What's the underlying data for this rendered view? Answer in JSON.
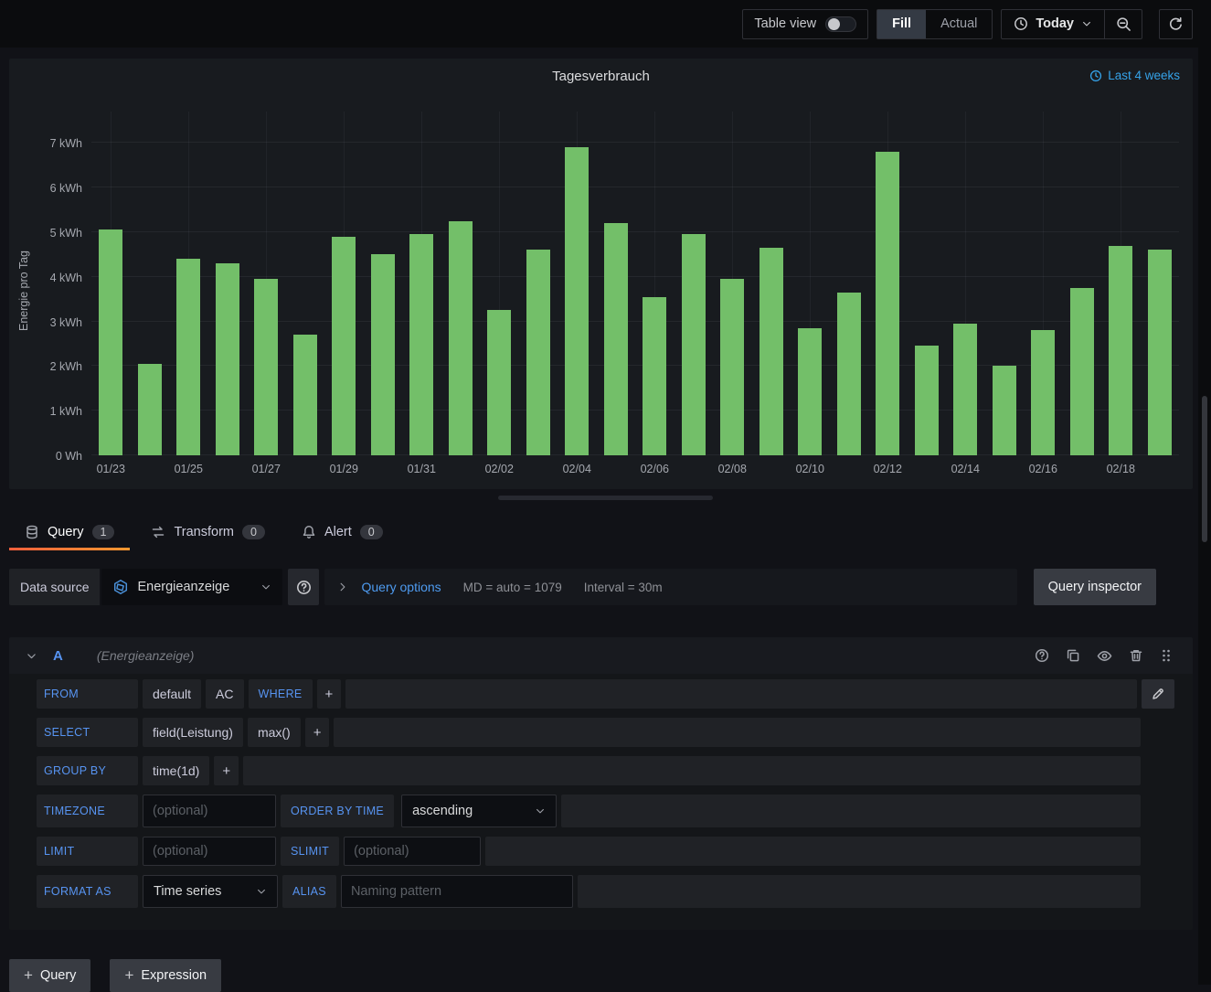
{
  "toolbar": {
    "table_view_label": "Table view",
    "fill_label": "Fill",
    "actual_label": "Actual",
    "time_range_label": "Today"
  },
  "panel": {
    "title": "Tagesverbrauch",
    "time_shift_label": "Last 4 weeks"
  },
  "chart_data": {
    "type": "bar",
    "title": "Tagesverbrauch",
    "xlabel": "",
    "ylabel": "Energie pro Tag",
    "categories": [
      "01/23",
      "01/24",
      "01/25",
      "01/26",
      "01/27",
      "01/28",
      "01/29",
      "01/30",
      "01/31",
      "02/01",
      "02/02",
      "02/03",
      "02/04",
      "02/05",
      "02/06",
      "02/07",
      "02/08",
      "02/09",
      "02/10",
      "02/11",
      "02/12",
      "02/13",
      "02/14",
      "02/15",
      "02/16",
      "02/17",
      "02/18",
      "02/19"
    ],
    "values": [
      5.05,
      2.05,
      4.4,
      4.3,
      3.95,
      2.7,
      4.9,
      4.5,
      4.95,
      5.25,
      3.25,
      4.6,
      6.9,
      5.2,
      3.55,
      4.95,
      3.95,
      4.65,
      2.85,
      3.65,
      6.8,
      2.45,
      2.95,
      2.0,
      2.8,
      3.75,
      4.7,
      4.6
    ],
    "x_tick_labels": [
      "01/23",
      "01/25",
      "01/27",
      "01/29",
      "01/31",
      "02/02",
      "02/04",
      "02/06",
      "02/08",
      "02/10",
      "02/12",
      "02/14",
      "02/16",
      "02/18"
    ],
    "y_ticks": [
      "0 Wh",
      "1 kWh",
      "2 kWh",
      "3 kWh",
      "4 kWh",
      "5 kWh",
      "6 kWh",
      "7 kWh"
    ],
    "ylim": [
      0,
      7.7
    ],
    "bar_color": "#73BF69",
    "grid": true,
    "legend": "none"
  },
  "tabs": [
    {
      "label": "Query",
      "count": "1",
      "active": true
    },
    {
      "label": "Transform",
      "count": "0",
      "active": false
    },
    {
      "label": "Alert",
      "count": "0",
      "active": false
    }
  ],
  "datasource_row": {
    "label": "Data source",
    "datasource_name": "Energieanzeige",
    "query_options_label": "Query options",
    "max_data_points": "MD = auto = 1079",
    "interval": "Interval = 30m",
    "inspector_label": "Query inspector"
  },
  "query_editor": {
    "ref_id": "A",
    "datasource_hint": "(Energieanzeige)",
    "from": {
      "label": "FROM",
      "policy": "default",
      "measurement": "AC",
      "where": "WHERE",
      "add": "+"
    },
    "select": {
      "label": "SELECT",
      "field": "field(Leistung)",
      "aggregation": "max()",
      "add": "+"
    },
    "group_by": {
      "label": "GROUP BY",
      "time": "time(1d)",
      "add": "+"
    },
    "timezone": {
      "label": "TIMEZONE",
      "placeholder": "(optional)"
    },
    "order_by": {
      "label": "ORDER BY TIME",
      "value": "ascending"
    },
    "limit": {
      "label": "LIMIT",
      "placeholder": "(optional)"
    },
    "slimit": {
      "label": "SLIMIT",
      "placeholder": "(optional)"
    },
    "format": {
      "label": "FORMAT AS",
      "value": "Time series"
    },
    "alias": {
      "label": "ALIAS",
      "placeholder": "Naming pattern"
    }
  },
  "footer": {
    "plus": "+",
    "add_query_label": "Query",
    "add_expression_label": "Expression"
  },
  "colors": {
    "bar_green": "#73BF69",
    "keyword_blue": "#5794F2",
    "link_blue": "#35A2E8",
    "active_tab_gradient": [
      "#F55F3C",
      "#FF9830"
    ]
  }
}
